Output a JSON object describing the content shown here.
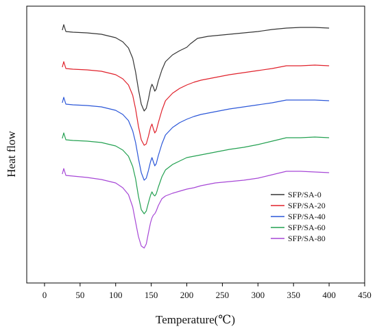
{
  "chart_data": {
    "type": "line",
    "title": "",
    "xlabel": "Temperature(℃)",
    "ylabel": "Heat flow",
    "xlim": [
      -25,
      450
    ],
    "xticks": [
      0,
      50,
      100,
      150,
      200,
      250,
      300,
      350,
      400,
      450
    ],
    "y_ticks_shown": false,
    "grid": false,
    "legend_position": "lower-right",
    "series": [
      {
        "name": "SFP/SA-0",
        "color": "#333333",
        "offset": 0,
        "points": [
          [
            25,
            44
          ],
          [
            27,
            36
          ],
          [
            30,
            46
          ],
          [
            40,
            47
          ],
          [
            60,
            48
          ],
          [
            80,
            50
          ],
          [
            100,
            55
          ],
          [
            110,
            61
          ],
          [
            118,
            70
          ],
          [
            124,
            85
          ],
          [
            128,
            105
          ],
          [
            132,
            130
          ],
          [
            136,
            152
          ],
          [
            140,
            162
          ],
          [
            143,
            158
          ],
          [
            146,
            145
          ],
          [
            149,
            129
          ],
          [
            151,
            123
          ],
          [
            153,
            127
          ],
          [
            155,
            133
          ],
          [
            157,
            130
          ],
          [
            160,
            118
          ],
          [
            165,
            102
          ],
          [
            170,
            90
          ],
          [
            180,
            80
          ],
          [
            190,
            74
          ],
          [
            200,
            69
          ],
          [
            205,
            64
          ],
          [
            210,
            60
          ],
          [
            215,
            56
          ],
          [
            220,
            55
          ],
          [
            225,
            54
          ],
          [
            230,
            53
          ],
          [
            240,
            52
          ],
          [
            250,
            51
          ],
          [
            260,
            50
          ],
          [
            280,
            48
          ],
          [
            300,
            46
          ],
          [
            320,
            43
          ],
          [
            340,
            41
          ],
          [
            360,
            40
          ],
          [
            380,
            40
          ],
          [
            400,
            41
          ]
        ]
      },
      {
        "name": "SFP/SA-20",
        "color": "#e0202a",
        "offset": 54,
        "points": [
          [
            25,
            44
          ],
          [
            27,
            36
          ],
          [
            30,
            46
          ],
          [
            40,
            47
          ],
          [
            60,
            48
          ],
          [
            80,
            50
          ],
          [
            100,
            55
          ],
          [
            110,
            61
          ],
          [
            118,
            70
          ],
          [
            124,
            85
          ],
          [
            128,
            105
          ],
          [
            132,
            130
          ],
          [
            136,
            150
          ],
          [
            140,
            158
          ],
          [
            143,
            156
          ],
          [
            146,
            145
          ],
          [
            149,
            132
          ],
          [
            151,
            127
          ],
          [
            153,
            134
          ],
          [
            155,
            140
          ],
          [
            157,
            137
          ],
          [
            160,
            125
          ],
          [
            165,
            107
          ],
          [
            170,
            93
          ],
          [
            180,
            82
          ],
          [
            190,
            75
          ],
          [
            200,
            70
          ],
          [
            210,
            66
          ],
          [
            220,
            63
          ],
          [
            230,
            61
          ],
          [
            240,
            59
          ],
          [
            250,
            57
          ],
          [
            260,
            55
          ],
          [
            280,
            52
          ],
          [
            300,
            49
          ],
          [
            320,
            46
          ],
          [
            340,
            42
          ],
          [
            360,
            42
          ],
          [
            380,
            41
          ],
          [
            400,
            42
          ]
        ]
      },
      {
        "name": "SFP/SA-40",
        "color": "#2a56d8",
        "offset": 106,
        "points": [
          [
            25,
            44
          ],
          [
            27,
            36
          ],
          [
            30,
            46
          ],
          [
            40,
            47
          ],
          [
            60,
            48
          ],
          [
            80,
            50
          ],
          [
            100,
            55
          ],
          [
            110,
            61
          ],
          [
            118,
            70
          ],
          [
            124,
            85
          ],
          [
            128,
            102
          ],
          [
            132,
            125
          ],
          [
            136,
            146
          ],
          [
            140,
            157
          ],
          [
            143,
            154
          ],
          [
            146,
            143
          ],
          [
            149,
            130
          ],
          [
            151,
            124
          ],
          [
            153,
            130
          ],
          [
            155,
            136
          ],
          [
            157,
            133
          ],
          [
            160,
            121
          ],
          [
            165,
            104
          ],
          [
            170,
            91
          ],
          [
            180,
            80
          ],
          [
            190,
            73
          ],
          [
            200,
            68
          ],
          [
            210,
            64
          ],
          [
            220,
            61
          ],
          [
            230,
            59
          ],
          [
            240,
            57
          ],
          [
            250,
            55
          ],
          [
            260,
            53
          ],
          [
            280,
            50
          ],
          [
            300,
            47
          ],
          [
            320,
            44
          ],
          [
            340,
            40
          ],
          [
            360,
            40
          ],
          [
            380,
            40
          ],
          [
            400,
            41
          ]
        ]
      },
      {
        "name": "SFP/SA-60",
        "color": "#22a050",
        "offset": 158,
        "points": [
          [
            25,
            44
          ],
          [
            27,
            36
          ],
          [
            30,
            46
          ],
          [
            40,
            47
          ],
          [
            60,
            48
          ],
          [
            80,
            50
          ],
          [
            100,
            55
          ],
          [
            110,
            61
          ],
          [
            118,
            70
          ],
          [
            124,
            85
          ],
          [
            128,
            103
          ],
          [
            132,
            128
          ],
          [
            136,
            148
          ],
          [
            140,
            154
          ],
          [
            143,
            150
          ],
          [
            146,
            138
          ],
          [
            149,
            127
          ],
          [
            151,
            122
          ],
          [
            153,
            126
          ],
          [
            155,
            128
          ],
          [
            157,
            125
          ],
          [
            160,
            115
          ],
          [
            165,
            100
          ],
          [
            170,
            90
          ],
          [
            180,
            82
          ],
          [
            190,
            77
          ],
          [
            200,
            72
          ],
          [
            210,
            70
          ],
          [
            220,
            68
          ],
          [
            230,
            66
          ],
          [
            240,
            64
          ],
          [
            250,
            62
          ],
          [
            260,
            60
          ],
          [
            280,
            57
          ],
          [
            300,
            53
          ],
          [
            320,
            48
          ],
          [
            340,
            43
          ],
          [
            360,
            43
          ],
          [
            380,
            42
          ],
          [
            400,
            43
          ]
        ]
      },
      {
        "name": "SFP/SA-80",
        "color": "#a646d6",
        "offset": 210,
        "points": [
          [
            25,
            44
          ],
          [
            27,
            36
          ],
          [
            30,
            46
          ],
          [
            40,
            47
          ],
          [
            60,
            49
          ],
          [
            80,
            52
          ],
          [
            100,
            57
          ],
          [
            110,
            64
          ],
          [
            118,
            74
          ],
          [
            124,
            92
          ],
          [
            128,
            114
          ],
          [
            132,
            135
          ],
          [
            136,
            149
          ],
          [
            140,
            152
          ],
          [
            143,
            146
          ],
          [
            146,
            130
          ],
          [
            149,
            115
          ],
          [
            151,
            108
          ],
          [
            153,
            104
          ],
          [
            155,
            102
          ],
          [
            157,
            98
          ],
          [
            160,
            90
          ],
          [
            165,
            80
          ],
          [
            170,
            76
          ],
          [
            180,
            72
          ],
          [
            190,
            69
          ],
          [
            200,
            66
          ],
          [
            210,
            64
          ],
          [
            220,
            61
          ],
          [
            230,
            59
          ],
          [
            240,
            57
          ],
          [
            250,
            56
          ],
          [
            260,
            55
          ],
          [
            280,
            53
          ],
          [
            300,
            50
          ],
          [
            320,
            45
          ],
          [
            340,
            40
          ],
          [
            360,
            40
          ],
          [
            380,
            41
          ],
          [
            400,
            42
          ]
        ]
      }
    ]
  }
}
